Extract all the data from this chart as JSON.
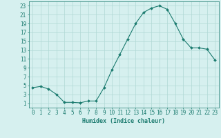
{
  "x": [
    0,
    1,
    2,
    3,
    4,
    5,
    6,
    7,
    8,
    9,
    10,
    11,
    12,
    13,
    14,
    15,
    16,
    17,
    18,
    19,
    20,
    21,
    22,
    23
  ],
  "y": [
    4.5,
    4.8,
    4.2,
    3.0,
    1.2,
    1.2,
    1.1,
    1.5,
    1.5,
    4.5,
    8.5,
    12.0,
    15.5,
    19.0,
    21.5,
    22.5,
    23.0,
    22.2,
    19.0,
    15.5,
    13.5,
    13.5,
    13.2,
    10.8
  ],
  "line_color": "#1a7a6e",
  "marker": "D",
  "marker_size": 2,
  "bg_color": "#d6f0ef",
  "grid_color": "#b0d8d5",
  "xlabel": "Humidex (Indice chaleur)",
  "xlim": [
    -0.5,
    23.5
  ],
  "ylim": [
    0,
    24
  ],
  "xticks": [
    0,
    1,
    2,
    3,
    4,
    5,
    6,
    7,
    8,
    9,
    10,
    11,
    12,
    13,
    14,
    15,
    16,
    17,
    18,
    19,
    20,
    21,
    22,
    23
  ],
  "yticks": [
    1,
    3,
    5,
    7,
    9,
    11,
    13,
    15,
    17,
    19,
    21,
    23
  ],
  "tick_color": "#1a7a6e",
  "label_fontsize": 6,
  "tick_fontsize": 5.5
}
